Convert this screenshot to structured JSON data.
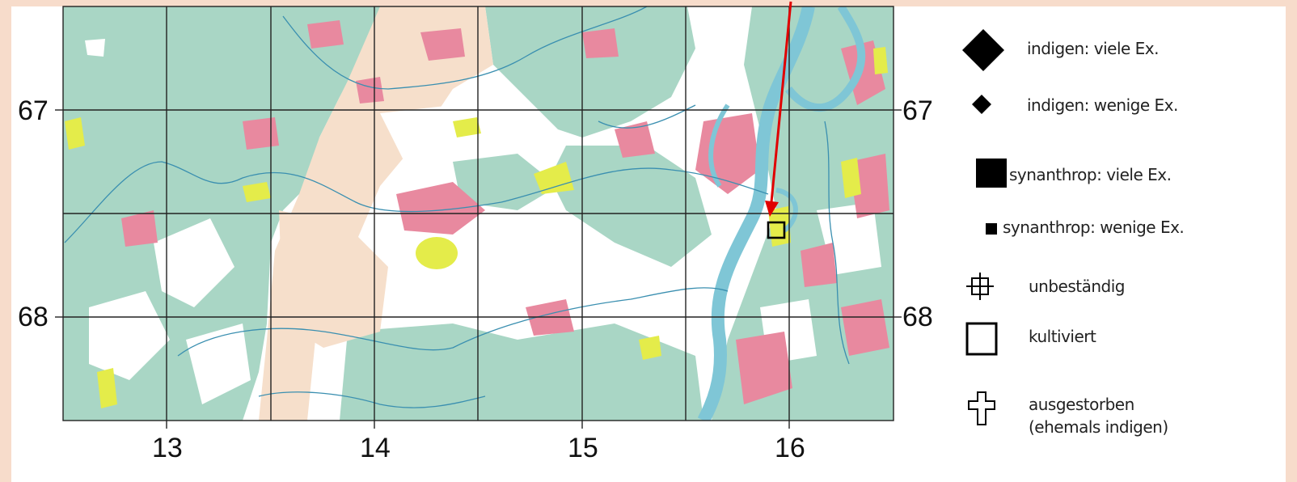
{
  "grid_labels": {
    "row_left": [
      "67",
      "68"
    ],
    "row_right": [
      "67",
      "68"
    ],
    "columns": [
      "13",
      "14",
      "15",
      "16"
    ]
  },
  "legend": [
    {
      "icon": "large-diamond-icon",
      "text": "indigen: viele Ex."
    },
    {
      "icon": "small-diamond-icon",
      "text": "indigen: wenige Ex."
    },
    {
      "icon": "large-square-icon",
      "text": "synanthrop: viele Ex."
    },
    {
      "icon": "small-square-icon",
      "text": "synanthrop: wenige Ex."
    },
    {
      "icon": "crosshair-icon",
      "text": "unbeständig"
    },
    {
      "icon": "open-square-icon",
      "text": "kultiviert"
    },
    {
      "icon": "cross-icon",
      "text": "ausgestorben",
      "text2": "(ehemals indigen)"
    }
  ],
  "colors": {
    "forest": "#a9d6c5",
    "open_land": "#f6dfcb",
    "urban": "#e8899f",
    "yellow": "#e4ec4a",
    "river": "#7fc6d6",
    "grid": "#222222",
    "pointer": "#e00000"
  }
}
